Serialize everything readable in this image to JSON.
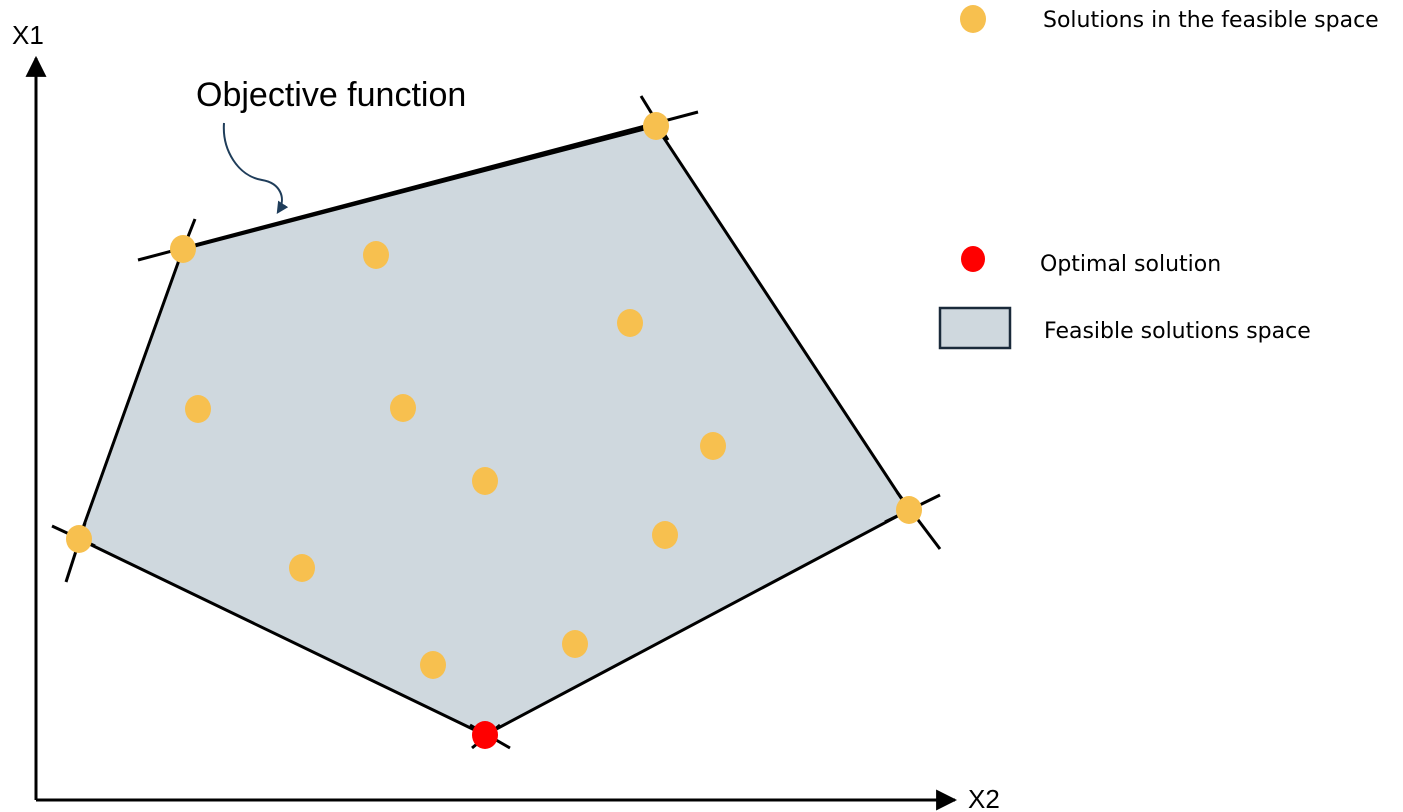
{
  "axes": {
    "x_label": "X2",
    "y_label": "X1"
  },
  "annotation": {
    "text": "Objective function"
  },
  "legend": {
    "feasible_point_label": "Solutions in the feasible space",
    "optimal_label": "Optimal solution",
    "region_label": "Feasible solutions space"
  },
  "colors": {
    "feasible_point": "#f7c04f",
    "optimal_point": "#ff0000",
    "region_fill": "#cfd8de",
    "region_stroke": "#1a2a3a",
    "annotation_arrow": "#1f3d5a",
    "line": "#000000"
  }
}
